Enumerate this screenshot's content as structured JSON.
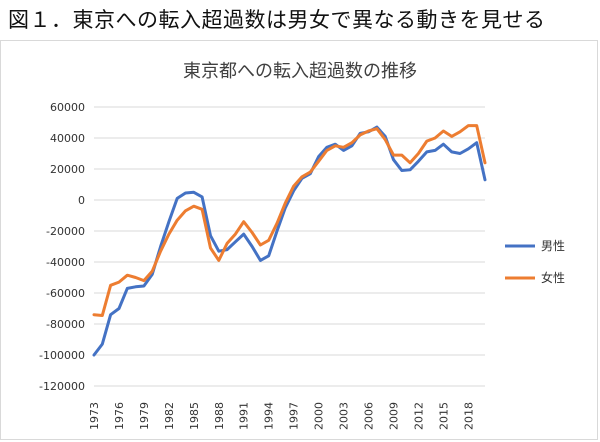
{
  "figure_heading": "図１．東京への転入超過数は男女で異なる動きを見せる",
  "chart_data": {
    "type": "line",
    "title": "東京都への転入超過数の推移",
    "xlabel": "",
    "ylabel": "",
    "ylim": [
      -120000,
      60000
    ],
    "yticks": [
      60000,
      40000,
      20000,
      0,
      -20000,
      -40000,
      -60000,
      -80000,
      -100000,
      -120000
    ],
    "ytick_labels": [
      "60000",
      "40000",
      "20000",
      "0",
      "-20000",
      "-40000",
      "-60000",
      "-80000",
      "-100000",
      "-120000"
    ],
    "xtick_labels": [
      "1973",
      "1976",
      "1979",
      "1982",
      "1985",
      "1988",
      "1991",
      "1994",
      "1997",
      "2000",
      "2003",
      "2006",
      "2009",
      "2012",
      "2015",
      "2018"
    ],
    "x": [
      1973,
      1974,
      1975,
      1976,
      1977,
      1978,
      1979,
      1980,
      1981,
      1982,
      1983,
      1984,
      1985,
      1986,
      1987,
      1988,
      1989,
      1990,
      1991,
      1992,
      1993,
      1994,
      1995,
      1996,
      1997,
      1998,
      1999,
      2000,
      2001,
      2002,
      2003,
      2004,
      2005,
      2006,
      2007,
      2008,
      2009,
      2010,
      2011,
      2012,
      2013,
      2014,
      2015,
      2016,
      2017,
      2018,
      2019,
      2020
    ],
    "legend_position": "right",
    "series": [
      {
        "name": "男性",
        "color": "#4472c4",
        "values": [
          -100000,
          -93000,
          -74000,
          -70000,
          -57000,
          -56000,
          -55500,
          -48000,
          -30000,
          -14000,
          1000,
          4500,
          5000,
          2000,
          -23000,
          -33000,
          -32000,
          -27000,
          -22000,
          -30000,
          -39000,
          -36000,
          -20000,
          -5000,
          6000,
          14000,
          17000,
          28000,
          34000,
          36000,
          32000,
          35000,
          43000,
          44000,
          47000,
          41000,
          26000,
          19000,
          19500,
          25000,
          31000,
          32000,
          36000,
          31000,
          30000,
          33000,
          37000,
          13000
        ]
      },
      {
        "name": "女性",
        "color": "#ed7d31",
        "values": [
          -74000,
          -74500,
          -55000,
          -53000,
          -48500,
          -50000,
          -52000,
          -46000,
          -33000,
          -22000,
          -13000,
          -7000,
          -4000,
          -6000,
          -31000,
          -39000,
          -28000,
          -22000,
          -14000,
          -21000,
          -29000,
          -26000,
          -15000,
          -2000,
          9000,
          15000,
          18000,
          25000,
          32000,
          35000,
          34000,
          37000,
          42000,
          44500,
          46000,
          39000,
          29000,
          29000,
          24000,
          30000,
          38000,
          40000,
          44500,
          41000,
          44000,
          48000,
          48000,
          24000
        ]
      }
    ]
  }
}
